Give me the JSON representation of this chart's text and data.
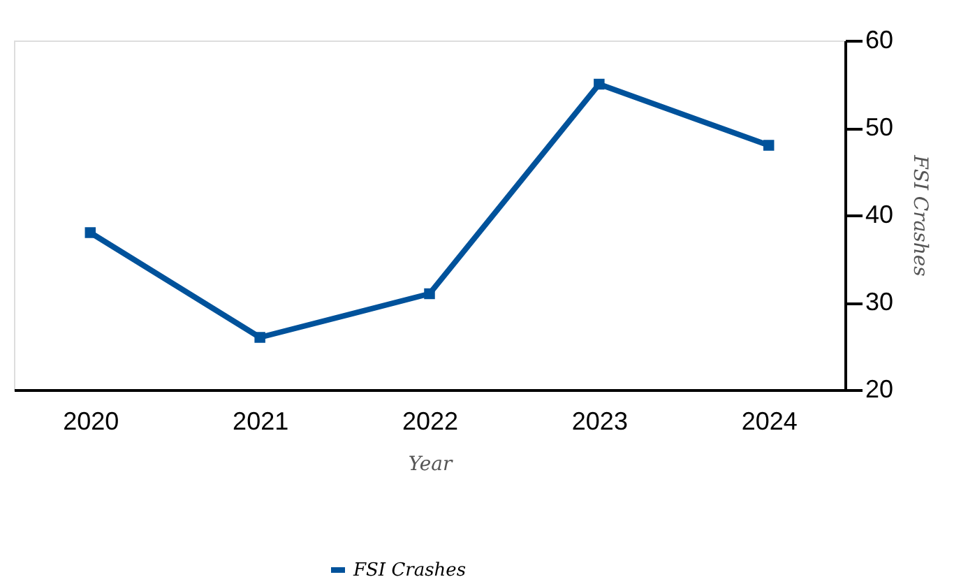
{
  "chart_data": {
    "type": "line",
    "xlabel": "Year",
    "ylabel": "FSI Crashes",
    "categories": [
      "2020",
      "2021",
      "2022",
      "2023",
      "2024"
    ],
    "series": [
      {
        "name": "FSI Crashes",
        "color": "#00529b",
        "values": [
          38,
          26,
          31,
          55,
          48
        ]
      }
    ],
    "ylim": [
      20,
      60
    ],
    "yticks": [
      20,
      30,
      40,
      50,
      60
    ],
    "grid": false,
    "legend": "bottom",
    "marker": "square",
    "line_style": "solid"
  }
}
